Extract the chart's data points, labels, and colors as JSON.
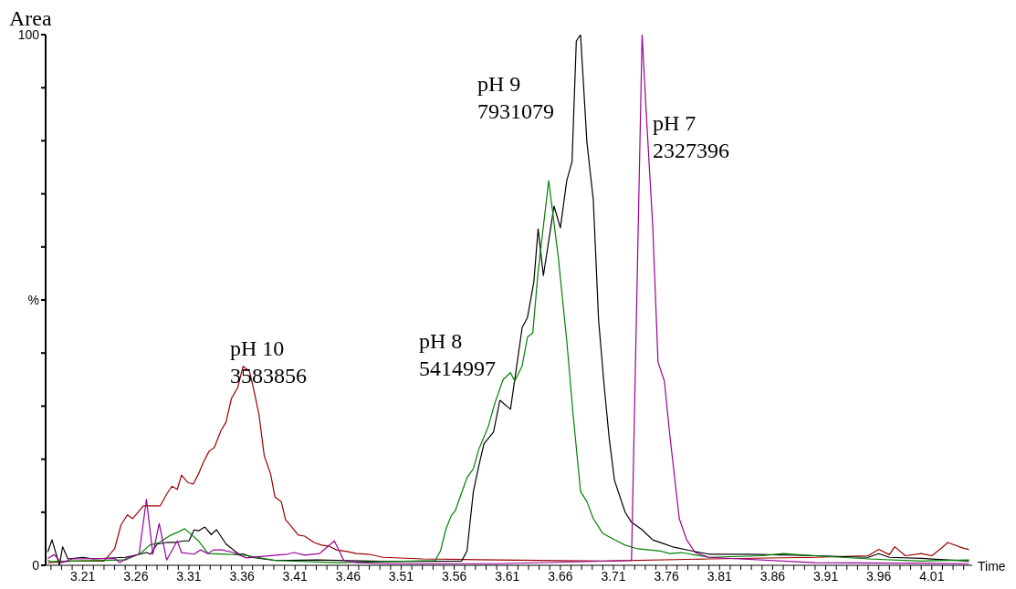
{
  "chart_data": {
    "type": "line",
    "ylabel": "Area",
    "xlabel": "Time",
    "xlim": [
      3.175,
      4.048
    ],
    "ylim": [
      0,
      100
    ],
    "xticks": [
      {
        "value": 3.18,
        "label": null
      },
      {
        "value": 3.19,
        "label": null
      },
      {
        "value": 3.2,
        "label": null
      },
      3.21,
      {
        "value": 3.22,
        "label": null
      },
      {
        "value": 3.23,
        "label": null
      },
      {
        "value": 3.24,
        "label": null
      },
      {
        "value": 3.25,
        "label": null
      },
      3.26,
      {
        "value": 3.27,
        "label": null
      },
      {
        "value": 3.28,
        "label": null
      },
      {
        "value": 3.29,
        "label": null
      },
      {
        "value": 3.3,
        "label": null
      },
      3.31,
      {
        "value": 3.32,
        "label": null
      },
      {
        "value": 3.33,
        "label": null
      },
      {
        "value": 3.34,
        "label": null
      },
      {
        "value": 3.35,
        "label": null
      },
      3.36,
      {
        "value": 3.37,
        "label": null
      },
      {
        "value": 3.38,
        "label": null
      },
      {
        "value": 3.39,
        "label": null
      },
      {
        "value": 3.4,
        "label": null
      },
      3.41,
      {
        "value": 3.42,
        "label": null
      },
      {
        "value": 3.43,
        "label": null
      },
      {
        "value": 3.44,
        "label": null
      },
      {
        "value": 3.45,
        "label": null
      },
      3.46,
      {
        "value": 3.47,
        "label": null
      },
      {
        "value": 3.48,
        "label": null
      },
      {
        "value": 3.49,
        "label": null
      },
      {
        "value": 3.5,
        "label": null
      },
      3.51,
      {
        "value": 3.52,
        "label": null
      },
      {
        "value": 3.53,
        "label": null
      },
      {
        "value": 3.54,
        "label": null
      },
      {
        "value": 3.55,
        "label": null
      },
      3.56,
      {
        "value": 3.57,
        "label": null
      },
      {
        "value": 3.58,
        "label": null
      },
      {
        "value": 3.59,
        "label": null
      },
      {
        "value": 3.6,
        "label": null
      },
      3.61,
      {
        "value": 3.62,
        "label": null
      },
      {
        "value": 3.63,
        "label": null
      },
      {
        "value": 3.64,
        "label": null
      },
      {
        "value": 3.65,
        "label": null
      },
      3.66,
      {
        "value": 3.67,
        "label": null
      },
      {
        "value": 3.68,
        "label": null
      },
      {
        "value": 3.69,
        "label": null
      },
      {
        "value": 3.7,
        "label": null
      },
      3.71,
      {
        "value": 3.72,
        "label": null
      },
      {
        "value": 3.73,
        "label": null
      },
      {
        "value": 3.74,
        "label": null
      },
      {
        "value": 3.75,
        "label": null
      },
      3.76,
      {
        "value": 3.77,
        "label": null
      },
      {
        "value": 3.78,
        "label": null
      },
      {
        "value": 3.79,
        "label": null
      },
      {
        "value": 3.8,
        "label": null
      },
      3.81,
      {
        "value": 3.82,
        "label": null
      },
      {
        "value": 3.83,
        "label": null
      },
      {
        "value": 3.84,
        "label": null
      },
      {
        "value": 3.85,
        "label": null
      },
      3.86,
      {
        "value": 3.87,
        "label": null
      },
      {
        "value": 3.88,
        "label": null
      },
      {
        "value": 3.89,
        "label": null
      },
      {
        "value": 3.9,
        "label": null
      },
      3.91,
      {
        "value": 3.92,
        "label": null
      },
      {
        "value": 3.93,
        "label": null
      },
      {
        "value": 3.94,
        "label": null
      },
      {
        "value": 3.95,
        "label": null
      },
      3.96,
      {
        "value": 3.97,
        "label": null
      },
      {
        "value": 3.98,
        "label": null
      },
      {
        "value": 3.99,
        "label": null
      },
      {
        "value": 4.0,
        "label": null
      },
      4.01,
      {
        "value": 4.02,
        "label": null
      },
      {
        "value": 4.03,
        "label": null
      },
      {
        "value": 4.04,
        "label": null
      }
    ],
    "yticks": [
      0,
      {
        "value": 10,
        "label": null
      },
      {
        "value": 20,
        "label": null
      },
      {
        "value": 30,
        "label": null
      },
      {
        "value": 40,
        "label": null
      },
      {
        "value": 50,
        "label": "%"
      },
      {
        "value": 60,
        "label": null
      },
      {
        "value": 70,
        "label": null
      },
      {
        "value": 80,
        "label": null
      },
      {
        "value": 90,
        "label": null
      },
      100
    ],
    "series": [
      {
        "color": "#990000",
        "x": [
          3.177,
          3.2,
          3.23,
          3.24,
          3.246,
          3.252,
          3.257,
          3.267,
          3.283,
          3.289,
          3.294,
          3.299,
          3.303,
          3.309,
          3.314,
          3.319,
          3.324,
          3.329,
          3.334,
          3.34,
          3.345,
          3.35,
          3.356,
          3.361,
          3.367,
          3.371,
          3.376,
          3.381,
          3.387,
          3.391,
          3.397,
          3.401,
          3.407,
          3.413,
          3.419,
          3.428,
          3.435,
          3.442,
          3.449,
          3.459,
          3.468,
          3.479,
          3.493,
          3.53,
          3.6,
          3.7,
          3.8,
          3.9,
          3.95,
          3.96,
          3.97,
          3.975,
          3.985,
          4.0,
          4.01,
          4.02,
          4.025,
          4.04,
          4.045
        ],
        "values": [
          0.5,
          0.8,
          0.8,
          3.1,
          7.6,
          9.5,
          8.8,
          11.2,
          11.2,
          13.4,
          14.9,
          14.3,
          17,
          15.6,
          15.3,
          17.2,
          19.6,
          21.5,
          22.2,
          25.3,
          27,
          31.4,
          33.5,
          37.5,
          36.6,
          33.2,
          28.4,
          20.6,
          17.2,
          12.9,
          12,
          8.6,
          7.2,
          5.7,
          5.5,
          4.3,
          3.8,
          3.6,
          2.9,
          2.6,
          2.2,
          2.1,
          1.5,
          1.2,
          1.0,
          0.8,
          1.2,
          1.5,
          1.8,
          3,
          2,
          3.5,
          1.8,
          2.2,
          1.8,
          3.4,
          4.3,
          3.2,
          3.0
        ]
      },
      {
        "color": "#000000",
        "x": [
          3.177,
          3.181,
          3.188,
          3.191,
          3.196,
          3.21,
          3.22,
          3.25,
          3.264,
          3.27,
          3.274,
          3.28,
          3.289,
          3.297,
          3.305,
          3.31,
          3.315,
          3.319,
          3.325,
          3.331,
          3.336,
          3.345,
          3.357,
          3.362,
          3.369,
          3.38,
          3.392,
          3.43,
          3.5,
          3.567,
          3.572,
          3.578,
          3.583,
          3.588,
          3.597,
          3.603,
          3.613,
          3.624,
          3.629,
          3.635,
          3.639,
          3.644,
          3.654,
          3.66,
          3.666,
          3.671,
          3.675,
          3.679,
          3.685,
          3.691,
          3.696,
          3.701,
          3.706,
          3.711,
          3.721,
          3.727,
          3.737,
          3.747,
          3.757,
          3.767,
          3.784,
          3.8,
          3.837,
          3.9,
          3.95,
          3.96,
          3.97,
          4.0,
          4.045
        ],
        "values": [
          2.5,
          4.8,
          0,
          3.5,
          1.2,
          1.5,
          1.2,
          1.5,
          2.1,
          2.4,
          2.1,
          4,
          4.3,
          4.3,
          4.6,
          4.6,
          6.7,
          6.5,
          7.2,
          5.8,
          6.7,
          4,
          2.1,
          2.1,
          1.5,
          1.2,
          0.9,
          1.0,
          0.7,
          0.8,
          2.7,
          13.9,
          18.6,
          22.9,
          25.1,
          31.1,
          29.4,
          44.8,
          46.7,
          53.4,
          63.4,
          54.6,
          67.7,
          63.6,
          72.5,
          76.1,
          98.8,
          100,
          79.7,
          68.9,
          46.2,
          34.4,
          23.9,
          16,
          10,
          8.1,
          6.7,
          4.8,
          4.1,
          3.4,
          2.7,
          2.1,
          2.1,
          1.8,
          1.5,
          2.2,
          1.5,
          1.3,
          0.8
        ]
      },
      {
        "color": "#008000",
        "x": [
          3.177,
          3.18,
          3.25,
          3.264,
          3.273,
          3.282,
          3.293,
          3.299,
          3.306,
          3.31,
          3.319,
          3.328,
          3.345,
          3.362,
          3.392,
          3.45,
          3.542,
          3.547,
          3.552,
          3.557,
          3.561,
          3.572,
          3.578,
          3.583,
          3.592,
          3.598,
          3.606,
          3.613,
          3.617,
          3.624,
          3.629,
          3.634,
          3.639,
          3.649,
          3.658,
          3.666,
          3.672,
          3.679,
          3.685,
          3.691,
          3.7,
          3.711,
          3.721,
          3.733,
          3.754,
          3.763,
          3.774,
          3.8,
          3.85,
          3.87,
          3.9,
          3.95,
          4.0,
          4.045
        ],
        "values": [
          1.0,
          0.7,
          1.0,
          2.2,
          3.8,
          4.3,
          5.7,
          6.2,
          6.9,
          6.2,
          4.6,
          2.2,
          2.1,
          1.9,
          0.9,
          0.5,
          0.9,
          2.7,
          6.7,
          9.3,
          10.3,
          16.5,
          18.2,
          21.8,
          26.1,
          30.4,
          35,
          36.3,
          34.7,
          37.6,
          43,
          43.8,
          55.3,
          72.5,
          58.1,
          42.3,
          28.4,
          13.9,
          12,
          8.8,
          6,
          4.8,
          3.8,
          3.1,
          2.7,
          2.2,
          2.4,
          1.5,
          1.8,
          2.2,
          1.8,
          1.2,
          0.8,
          1.0
        ]
      },
      {
        "color": "#990099",
        "x": [
          3.177,
          3.183,
          3.19,
          3.2,
          3.24,
          3.245,
          3.252,
          3.263,
          3.27,
          3.276,
          3.282,
          3.289,
          3.299,
          3.303,
          3.315,
          3.321,
          3.328,
          3.333,
          3.341,
          3.352,
          3.364,
          3.392,
          3.403,
          3.409,
          3.419,
          3.433,
          3.447,
          3.456,
          3.469,
          3.5,
          3.6,
          3.727,
          3.737,
          3.741,
          3.747,
          3.752,
          3.758,
          3.763,
          3.772,
          3.779,
          3.787,
          3.8,
          3.9,
          4.045
        ],
        "values": [
          1.3,
          2.0,
          0.5,
          1.2,
          1.3,
          0.5,
          1.4,
          2.1,
          12.4,
          2.1,
          7.9,
          1.0,
          4.6,
          2.4,
          2.1,
          2.9,
          2.2,
          2.9,
          2.9,
          2.4,
          1.4,
          1.9,
          2.1,
          2.4,
          1.9,
          2.2,
          4.6,
          0.9,
          0.5,
          0.3,
          0.3,
          0.9,
          100,
          84.9,
          63.9,
          38.3,
          34.7,
          24.7,
          8.8,
          4.8,
          2.4,
          1.5,
          0.5,
          0.3
        ]
      }
    ],
    "annotations": [
      "pH 10\n3583856",
      "pH 8\n5414997",
      "pH 9\n7931079",
      "pH 7\n2327396"
    ]
  }
}
